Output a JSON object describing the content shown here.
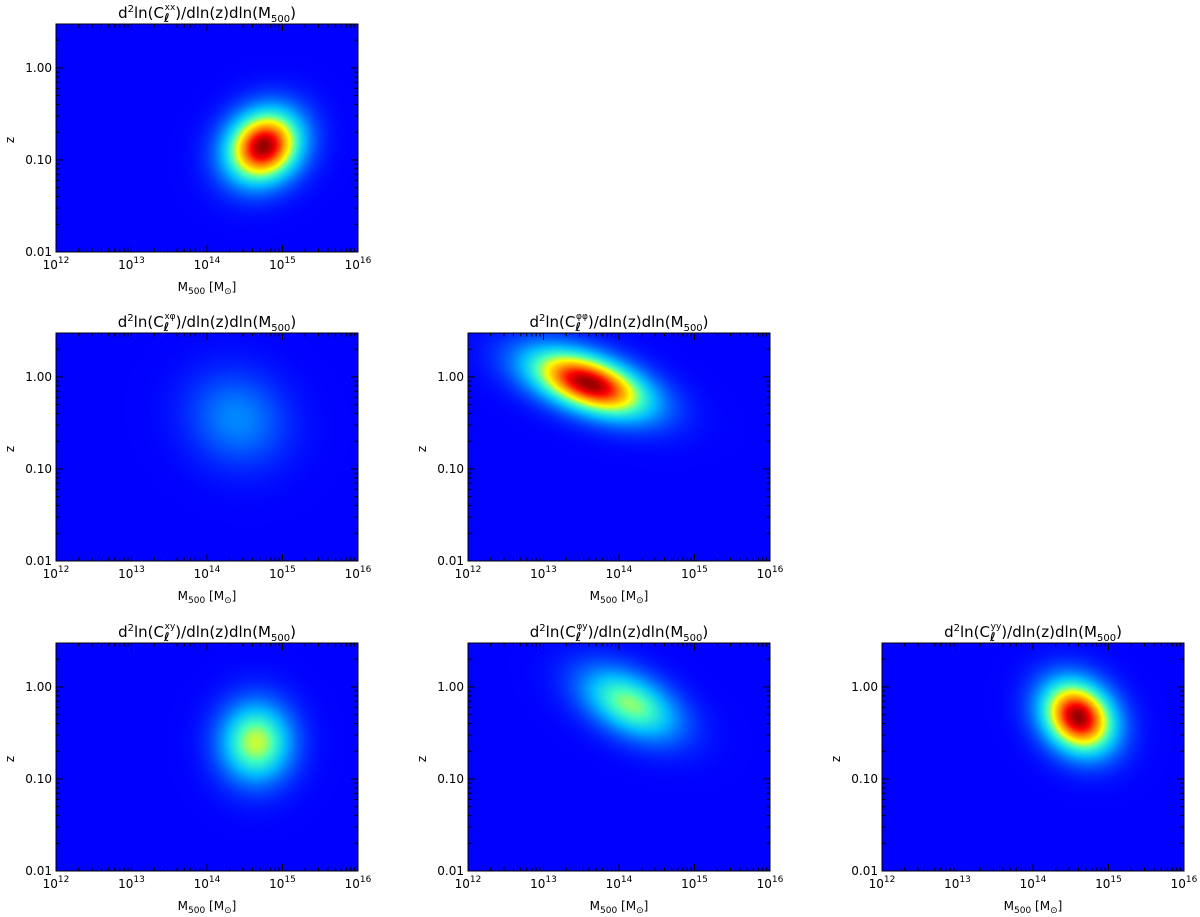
{
  "colormap": [
    "#00007f",
    "#0000ff",
    "#00bfff",
    "#40ffbf",
    "#ffff00",
    "#ff8000",
    "#ff0000",
    "#7f0000"
  ],
  "chart_data": [
    {
      "id": "xx",
      "type": "heatmap",
      "title_sup": "xx",
      "xlabel_main": "M",
      "xlabel_sub": "500",
      "xlabel_unit": "M",
      "ylabel": "z",
      "x_scale": "log",
      "xlim": [
        1000000000000.0,
        1e+16
      ],
      "x_ticks": [
        {
          "base": "10",
          "exp": "12"
        },
        {
          "base": "10",
          "exp": "13"
        },
        {
          "base": "10",
          "exp": "14"
        },
        {
          "base": "10",
          "exp": "15"
        },
        {
          "base": "10",
          "exp": "16"
        }
      ],
      "y_scale": "log",
      "ylim": [
        0.01,
        3.0
      ],
      "y_ticks": [
        "0.01",
        "0.10",
        "1.00"
      ],
      "peak": {
        "log10_M500": 14.75,
        "z": 0.14,
        "level": 0.98
      },
      "spread": {
        "sigma_log10_M500": 0.34,
        "sigma_log10_z": 0.27,
        "correlation": 0.15
      }
    },
    {
      "id": "xphi",
      "type": "heatmap",
      "title_sup": "xφ",
      "xlabel_main": "M",
      "xlabel_sub": "500",
      "xlabel_unit": "M",
      "ylabel": "z",
      "x_scale": "log",
      "xlim": [
        1000000000000.0,
        1e+16
      ],
      "x_ticks": [
        {
          "base": "10",
          "exp": "12"
        },
        {
          "base": "10",
          "exp": "13"
        },
        {
          "base": "10",
          "exp": "14"
        },
        {
          "base": "10",
          "exp": "15"
        },
        {
          "base": "10",
          "exp": "16"
        }
      ],
      "y_scale": "log",
      "ylim": [
        0.01,
        3.0
      ],
      "y_ticks": [
        "0.01",
        "0.10",
        "1.00"
      ],
      "peak": {
        "log10_M500": 14.4,
        "z": 0.35,
        "level": 0.2
      },
      "spread": {
        "sigma_log10_M500": 0.45,
        "sigma_log10_z": 0.35,
        "correlation": -0.1
      }
    },
    {
      "id": "phiphi",
      "type": "heatmap",
      "title_sup": "φφ",
      "xlabel_main": "M",
      "xlabel_sub": "500",
      "xlabel_unit": "M",
      "ylabel": "z",
      "x_scale": "log",
      "xlim": [
        1000000000000.0,
        1e+16
      ],
      "x_ticks": [
        {
          "base": "10",
          "exp": "12"
        },
        {
          "base": "10",
          "exp": "13"
        },
        {
          "base": "10",
          "exp": "14"
        },
        {
          "base": "10",
          "exp": "15"
        },
        {
          "base": "10",
          "exp": "16"
        }
      ],
      "y_scale": "log",
      "ylim": [
        0.01,
        3.0
      ],
      "y_ticks": [
        "0.01",
        "0.10",
        "1.00"
      ],
      "peak": {
        "log10_M500": 13.6,
        "z": 0.85,
        "level": 0.98
      },
      "spread": {
        "sigma_log10_M500": 0.55,
        "sigma_log10_z": 0.25,
        "correlation": -0.5
      }
    },
    {
      "id": "xy",
      "type": "heatmap",
      "title_sup": "xy",
      "xlabel_main": "M",
      "xlabel_sub": "500",
      "xlabel_unit": "M",
      "ylabel": "z",
      "x_scale": "log",
      "xlim": [
        1000000000000.0,
        1e+16
      ],
      "x_ticks": [
        {
          "base": "10",
          "exp": "12"
        },
        {
          "base": "10",
          "exp": "13"
        },
        {
          "base": "10",
          "exp": "14"
        },
        {
          "base": "10",
          "exp": "15"
        },
        {
          "base": "10",
          "exp": "16"
        }
      ],
      "y_scale": "log",
      "ylim": [
        0.01,
        3.0
      ],
      "y_ticks": [
        "0.01",
        "0.10",
        "1.00"
      ],
      "peak": {
        "log10_M500": 14.65,
        "z": 0.25,
        "level": 0.55
      },
      "spread": {
        "sigma_log10_M500": 0.33,
        "sigma_log10_z": 0.3,
        "correlation": 0.0
      }
    },
    {
      "id": "phiy",
      "type": "heatmap",
      "title_sup": "φy",
      "xlabel_main": "M",
      "xlabel_sub": "500",
      "xlabel_unit": "M",
      "ylabel": "z",
      "x_scale": "log",
      "xlim": [
        1000000000000.0,
        1e+16
      ],
      "x_ticks": [
        {
          "base": "10",
          "exp": "12"
        },
        {
          "base": "10",
          "exp": "13"
        },
        {
          "base": "10",
          "exp": "14"
        },
        {
          "base": "10",
          "exp": "15"
        },
        {
          "base": "10",
          "exp": "16"
        }
      ],
      "y_scale": "log",
      "ylim": [
        0.01,
        3.0
      ],
      "y_ticks": [
        "0.01",
        "0.10",
        "1.00"
      ],
      "peak": {
        "log10_M500": 14.15,
        "z": 0.65,
        "level": 0.5
      },
      "spread": {
        "sigma_log10_M500": 0.45,
        "sigma_log10_z": 0.27,
        "correlation": -0.45
      }
    },
    {
      "id": "yy",
      "type": "heatmap",
      "title_sup": "yy",
      "xlabel_main": "M",
      "xlabel_sub": "500",
      "xlabel_unit": "M",
      "ylabel": "z",
      "x_scale": "log",
      "xlim": [
        1000000000000.0,
        1e+16
      ],
      "x_ticks": [
        {
          "base": "10",
          "exp": "12"
        },
        {
          "base": "10",
          "exp": "13"
        },
        {
          "base": "10",
          "exp": "14"
        },
        {
          "base": "10",
          "exp": "15"
        },
        {
          "base": "10",
          "exp": "16"
        }
      ],
      "y_scale": "log",
      "ylim": [
        0.01,
        3.0
      ],
      "y_ticks": [
        "0.01",
        "0.10",
        "1.00"
      ],
      "peak": {
        "log10_M500": 14.6,
        "z": 0.47,
        "level": 0.98
      },
      "spread": {
        "sigma_log10_M500": 0.33,
        "sigma_log10_z": 0.27,
        "correlation": -0.2
      }
    }
  ]
}
